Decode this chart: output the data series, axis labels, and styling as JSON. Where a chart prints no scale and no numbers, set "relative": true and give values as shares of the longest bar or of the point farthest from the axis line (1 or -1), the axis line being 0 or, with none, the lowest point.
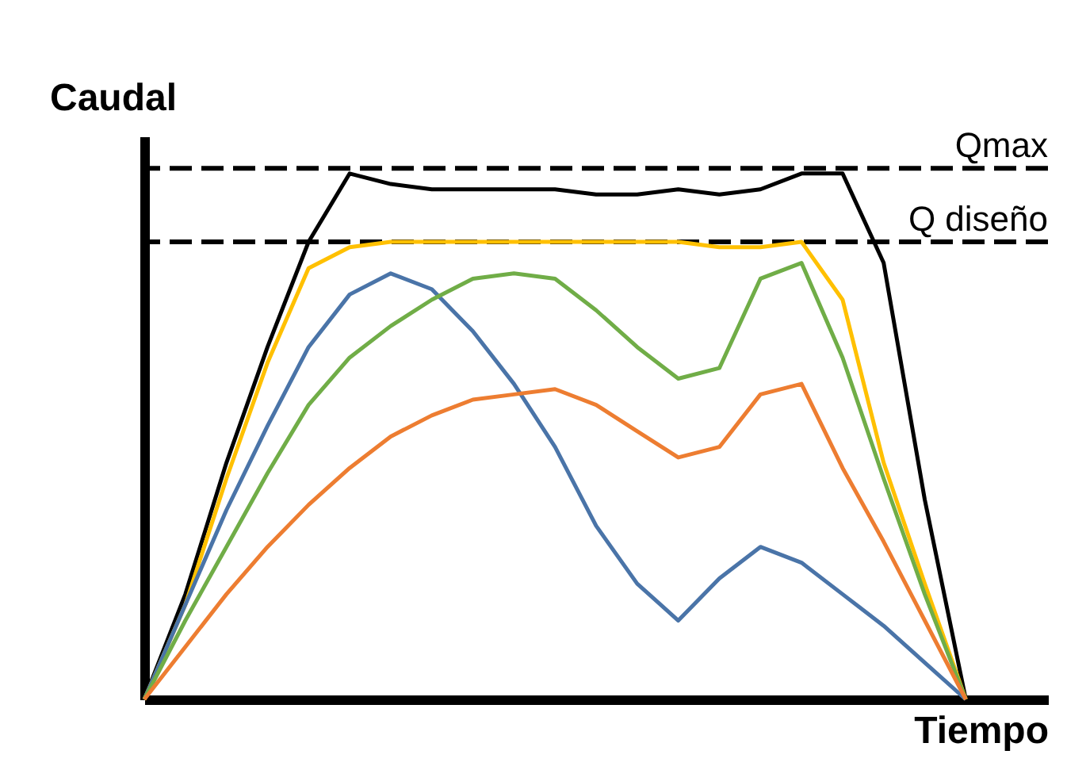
{
  "chart_data": {
    "type": "line",
    "relative": true,
    "xlabel": "Tiempo",
    "ylabel": "Caudal",
    "marker": "none",
    "line_style": "solid",
    "categories": [
      null,
      null,
      null,
      null,
      null,
      null,
      null,
      null,
      null,
      null,
      null,
      null,
      null,
      null,
      null,
      null,
      null,
      null,
      null,
      null,
      null
    ],
    "series": [
      {
        "color": "#000000",
        "values": [
          0,
          0.2,
          0.45,
          0.67,
          0.87,
          1.0,
          0.98,
          0.97,
          0.97,
          0.97,
          0.97,
          0.96,
          0.96,
          0.97,
          0.96,
          0.97,
          1.0,
          1.0,
          0.83,
          0.38,
          0
        ]
      },
      {
        "color": "#ffc000",
        "values": [
          0,
          0.18,
          0.42,
          0.64,
          0.82,
          0.86,
          0.87,
          0.87,
          0.87,
          0.87,
          0.87,
          0.87,
          0.87,
          0.87,
          0.86,
          0.86,
          0.87,
          0.76,
          0.45,
          0.22,
          0
        ]
      },
      {
        "color": "#4a74a8",
        "values": [
          0,
          0.18,
          0.36,
          0.52,
          0.67,
          0.77,
          0.81,
          0.78,
          0.7,
          0.6,
          0.48,
          0.33,
          0.22,
          0.15,
          0.23,
          0.29,
          0.26,
          0.2,
          0.14,
          0.07,
          0
        ]
      },
      {
        "color": "#70ad47",
        "values": [
          0,
          0.15,
          0.29,
          0.43,
          0.56,
          0.65,
          0.71,
          0.76,
          0.8,
          0.81,
          0.8,
          0.74,
          0.67,
          0.61,
          0.63,
          0.8,
          0.83,
          0.65,
          0.42,
          0.2,
          0
        ]
      },
      {
        "color": "#ed7d31",
        "values": [
          0,
          0.1,
          0.2,
          0.29,
          0.37,
          0.44,
          0.5,
          0.54,
          0.57,
          0.58,
          0.59,
          0.56,
          0.51,
          0.46,
          0.48,
          0.58,
          0.6,
          0.44,
          0.3,
          0.15,
          0
        ]
      }
    ],
    "ref_lines": [
      {
        "axis": "y",
        "value": 1.01,
        "label": "Qmax",
        "color": "#000000",
        "line_style": "dashed"
      },
      {
        "axis": "y",
        "value": 0.87,
        "label": "Q diseño",
        "color": "#000000",
        "line_style": "dashed"
      }
    ]
  }
}
